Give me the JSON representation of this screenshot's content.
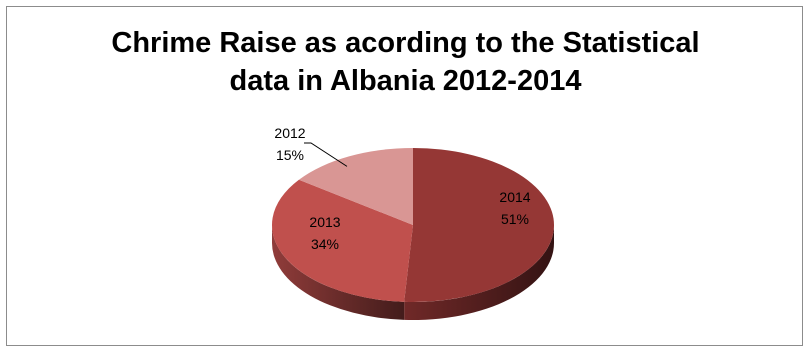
{
  "chart_data": {
    "type": "pie",
    "title_lines": [
      "Chrime Raise as acording to the Statistical",
      "data in Albania 2012-2014"
    ],
    "categories": [
      "2014",
      "2013",
      "2012"
    ],
    "values": [
      51,
      34,
      15
    ],
    "labels": [
      {
        "category": "2014",
        "percent": "51%"
      },
      {
        "category": "2013",
        "percent": "34%"
      },
      {
        "category": "2012",
        "percent": "15%"
      }
    ],
    "colors": [
      "#953735",
      "#c0504d",
      "#d99694"
    ],
    "pie_style": "3d",
    "legend": "none"
  }
}
